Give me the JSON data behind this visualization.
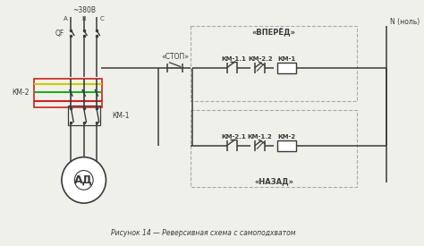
{
  "caption": "Рисунок 14 — Реверсивная схема с самоподхватом",
  "bg_color": "#f0f0eb",
  "lc": "#3a3a3a",
  "red": "#cc2222",
  "green": "#22aa22",
  "yellow": "#cccc00",
  "gray": "#aaaaaa",
  "label_380": "~380В",
  "label_A": "A",
  "label_B": "B",
  "label_C": "C",
  "label_QF": "QF",
  "label_STOP": "«СТОП»",
  "label_VPERED": "«ВПЕРЁД»",
  "label_NAZAD": "«НАЗАД»",
  "label_N": "N (ноль)",
  "label_AD": "АД",
  "label_KM1": "КМ-1",
  "label_KM2": "КМ-2",
  "label_KM11": "КМ-1.1",
  "label_KM21": "КМ-2.1",
  "label_KM12": "КМ-1.2",
  "label_KM22": "КМ-2.2"
}
